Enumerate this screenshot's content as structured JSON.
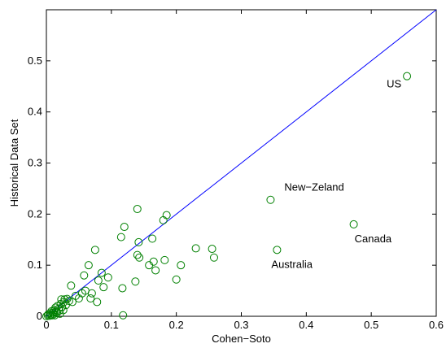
{
  "chart_data": {
    "type": "scatter",
    "xlabel": "Cohen−Soto",
    "ylabel": "Historical Data Set",
    "xlim": [
      0,
      0.6
    ],
    "ylim": [
      0,
      0.6
    ],
    "xticks": [
      "0",
      "0.1",
      "0.2",
      "0.3",
      "0.4",
      "0.5",
      "0.6"
    ],
    "yticks": [
      "0",
      "0.1",
      "0.2",
      "0.3",
      "0.4",
      "0.5"
    ],
    "grid": false,
    "marker": "circle-open",
    "marker_color": "#008000",
    "reference_line": {
      "points": [
        [
          0,
          0
        ],
        [
          0.6,
          0.6
        ]
      ],
      "color": "#0000ff"
    },
    "points": [
      [
        0.0,
        0.0
      ],
      [
        0.002,
        0.002
      ],
      [
        0.003,
        0.004
      ],
      [
        0.005,
        0.001
      ],
      [
        0.006,
        0.006
      ],
      [
        0.007,
        0.003
      ],
      [
        0.008,
        0.01
      ],
      [
        0.009,
        0.002
      ],
      [
        0.01,
        0.007
      ],
      [
        0.011,
        0.004
      ],
      [
        0.012,
        0.012
      ],
      [
        0.013,
        0.002
      ],
      [
        0.014,
        0.017
      ],
      [
        0.015,
        0.009
      ],
      [
        0.016,
        0.006
      ],
      [
        0.017,
        0.02
      ],
      [
        0.019,
        0.015
      ],
      [
        0.02,
        0.011
      ],
      [
        0.021,
        0.005
      ],
      [
        0.022,
        0.024
      ],
      [
        0.023,
        0.033
      ],
      [
        0.024,
        0.018
      ],
      [
        0.026,
        0.012
      ],
      [
        0.027,
        0.028
      ],
      [
        0.028,
        0.033
      ],
      [
        0.03,
        0.022
      ],
      [
        0.032,
        0.034
      ],
      [
        0.035,
        0.03
      ],
      [
        0.038,
        0.06
      ],
      [
        0.04,
        0.028
      ],
      [
        0.045,
        0.04
      ],
      [
        0.05,
        0.035
      ],
      [
        0.055,
        0.045
      ],
      [
        0.058,
        0.08
      ],
      [
        0.06,
        0.05
      ],
      [
        0.065,
        0.1
      ],
      [
        0.068,
        0.035
      ],
      [
        0.07,
        0.045
      ],
      [
        0.075,
        0.13
      ],
      [
        0.078,
        0.028
      ],
      [
        0.08,
        0.07
      ],
      [
        0.085,
        0.085
      ],
      [
        0.088,
        0.057
      ],
      [
        0.095,
        0.076
      ],
      [
        0.115,
        0.155
      ],
      [
        0.117,
        0.055
      ],
      [
        0.118,
        0.002
      ],
      [
        0.12,
        0.175
      ],
      [
        0.137,
        0.068
      ],
      [
        0.14,
        0.21
      ],
      [
        0.14,
        0.12
      ],
      [
        0.142,
        0.145
      ],
      [
        0.143,
        0.115
      ],
      [
        0.158,
        0.1
      ],
      [
        0.163,
        0.152
      ],
      [
        0.165,
        0.107
      ],
      [
        0.168,
        0.09
      ],
      [
        0.18,
        0.188
      ],
      [
        0.182,
        0.11
      ],
      [
        0.185,
        0.198
      ],
      [
        0.2,
        0.072
      ],
      [
        0.207,
        0.1
      ],
      [
        0.23,
        0.133
      ],
      [
        0.255,
        0.132
      ],
      [
        0.258,
        0.115
      ],
      [
        0.345,
        0.228
      ],
      [
        0.355,
        0.13
      ],
      [
        0.473,
        0.18
      ],
      [
        0.555,
        0.47
      ]
    ],
    "annotations": [
      {
        "text": "US",
        "x": 0.555,
        "y": 0.47
      },
      {
        "text": "New−Zeland",
        "x": 0.345,
        "y": 0.228
      },
      {
        "text": "Canada",
        "x": 0.473,
        "y": 0.18
      },
      {
        "text": "Australia",
        "x": 0.355,
        "y": 0.13
      }
    ]
  }
}
